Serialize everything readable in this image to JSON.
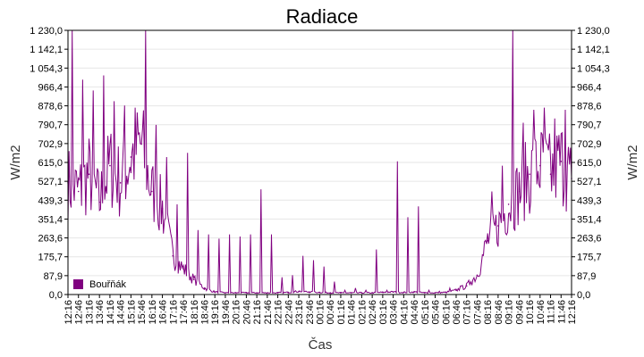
{
  "chart_data": {
    "type": "line",
    "title": "Radiace",
    "xlabel": "Čas",
    "ylabel_left": "W/m2",
    "ylabel_right": "W/m2",
    "ylim": [
      0,
      1230
    ],
    "y_ticks": [
      "0,0",
      "87,9",
      "175,7",
      "263,6",
      "351,4",
      "439,3",
      "527,1",
      "615,0",
      "702,9",
      "790,7",
      "878,6",
      "966,4",
      "1 054,3",
      "1 142,1",
      "1 230,0"
    ],
    "x_tick_labels": [
      "12:16",
      "12:46",
      "13:16",
      "13:46",
      "14:16",
      "14:46",
      "15:16",
      "15:46",
      "16:16",
      "16:46",
      "17:16",
      "17:46",
      "18:16",
      "18:46",
      "19:16",
      "19:46",
      "20:16",
      "20:46",
      "21:16",
      "21:46",
      "22:16",
      "22:46",
      "23:16",
      "23:46",
      "00:16",
      "00:46",
      "01:16",
      "01:46",
      "02:16",
      "02:46",
      "03:16",
      "03:46",
      "04:16",
      "04:46",
      "05:16",
      "05:46",
      "06:16",
      "06:46",
      "07:16",
      "07:46",
      "08:16",
      "08:46",
      "09:16",
      "09:46",
      "10:16",
      "10:46",
      "11:16",
      "11:46",
      "12:16"
    ],
    "legend_position": "bottom-left",
    "grid": true,
    "series": [
      {
        "name": "Bouřňák",
        "color": "#800080",
        "x": [
          "12:16",
          "12:46",
          "13:16",
          "13:46",
          "14:16",
          "14:46",
          "15:16",
          "15:46",
          "16:16",
          "16:46",
          "17:16",
          "17:46",
          "18:16",
          "18:46",
          "19:16",
          "19:46",
          "20:16",
          "20:46",
          "21:16",
          "21:46",
          "22:16",
          "22:46",
          "23:16",
          "23:46",
          "00:16",
          "00:46",
          "01:16",
          "01:46",
          "02:16",
          "02:46",
          "03:16",
          "03:46",
          "04:16",
          "04:46",
          "05:16",
          "05:46",
          "06:16",
          "06:46",
          "07:16",
          "07:46",
          "08:16",
          "08:46",
          "09:16",
          "09:46",
          "10:16",
          "10:46",
          "11:16",
          "11:46",
          "12:16"
        ],
        "values": [
          520,
          480,
          560,
          430,
          600,
          520,
          640,
          700,
          480,
          400,
          180,
          120,
          70,
          30,
          12,
          8,
          8,
          8,
          8,
          8,
          8,
          10,
          15,
          12,
          10,
          8,
          8,
          8,
          8,
          8,
          10,
          12,
          10,
          12,
          8,
          8,
          10,
          20,
          40,
          90,
          250,
          320,
          420,
          480,
          560,
          600,
          560,
          620,
          540
        ],
        "peaks": [
          1230,
          1000,
          950,
          1020,
          900,
          880,
          870,
          1230,
          790,
          640,
          420,
          660,
          300,
          280,
          260,
          280,
          270,
          280,
          490,
          280,
          80,
          90,
          180,
          160,
          130,
          60,
          20,
          30,
          20,
          210,
          20,
          620,
          360,
          410,
          20,
          15,
          30,
          40,
          60,
          140,
          480,
          600,
          1230,
          800,
          860,
          870,
          820,
          860,
          790
        ]
      }
    ]
  }
}
